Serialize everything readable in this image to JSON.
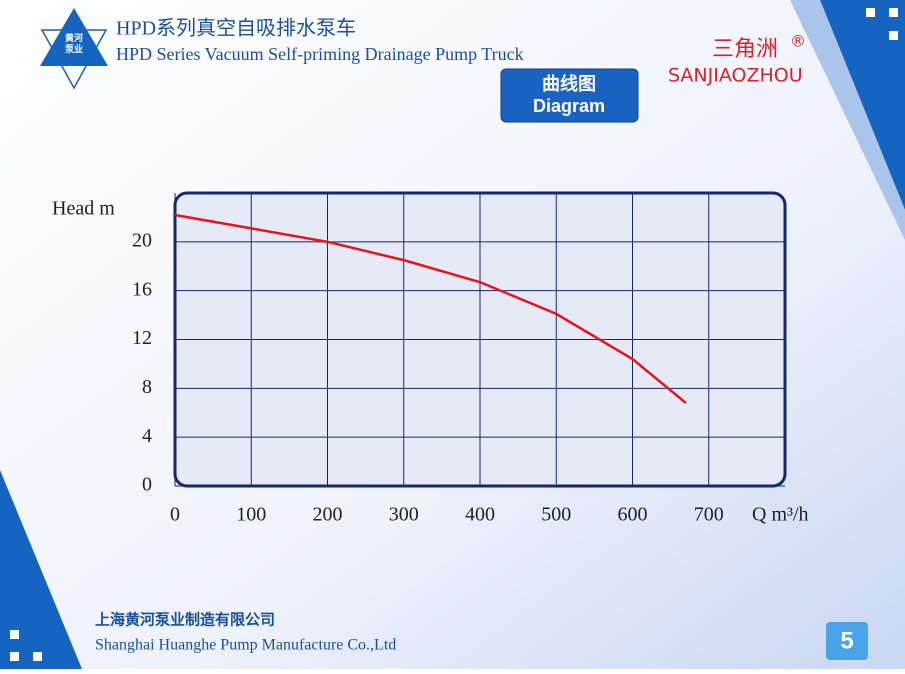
{
  "header": {
    "title_cn": "HPD系列真空自吸排水泵车",
    "title_en": "HPD Series Vacuum Self-priming Drainage Pump Truck",
    "logo_left_1": "黄河",
    "logo_left_2": "泵业",
    "logo_right_cn": "三角洲",
    "logo_right_en": "SANJIAOZHOU",
    "logo_right_mark": "®",
    "badge_cn": "曲线图",
    "badge_en": "Diagram"
  },
  "chart_data": {
    "type": "line",
    "y_label": "Head m",
    "x_label": "Q m³/h",
    "x": [
      0,
      100,
      200,
      300,
      400,
      500,
      600,
      670
    ],
    "series": [
      {
        "name": "Head",
        "color": "#e8141b",
        "values": [
          22.2,
          21.1,
          20,
          18.5,
          16.7,
          14.1,
          10.4,
          6.8
        ]
      }
    ],
    "xlim": [
      0,
      800
    ],
    "xticks": [
      0,
      100,
      200,
      300,
      400,
      500,
      600,
      700
    ],
    "ylim": [
      0,
      24
    ],
    "yticks": [
      0,
      4,
      8,
      12,
      16,
      20
    ],
    "grid": true
  },
  "footer": {
    "company_cn": "上海黄河泵业制造有限公司",
    "company_en": "Shanghai Huanghe Pump Manufacture Co.,Ltd",
    "page": "5"
  }
}
